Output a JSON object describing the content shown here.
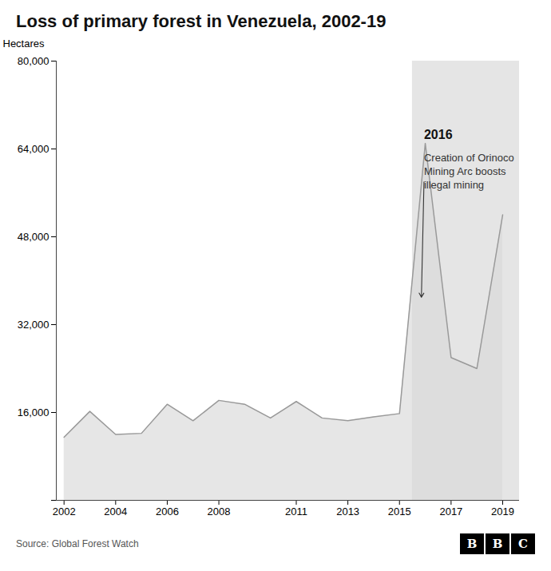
{
  "chart_data": {
    "type": "area",
    "title": "Loss of primary forest in Venezuela, 2002-19",
    "x": [
      2002,
      2003,
      2004,
      2005,
      2006,
      2007,
      2008,
      2009,
      2010,
      2011,
      2012,
      2013,
      2014,
      2015,
      2016,
      2017,
      2018,
      2019
    ],
    "values": [
      11500,
      16200,
      12000,
      12200,
      17500,
      14500,
      18200,
      17500,
      15000,
      18000,
      15000,
      14500,
      15200,
      15800,
      65000,
      26000,
      24000,
      52000
    ],
    "color": "#999999",
    "fill_color": "#d8d8d8",
    "highlight": {
      "x": [
        2015.5,
        2019.65
      ],
      "color": "#d0d0d0"
    },
    "ylabel": "Hectares",
    "xlim": [
      2001.7,
      2019.65
    ],
    "xticks": [
      2002,
      2004,
      2006,
      2008,
      2011,
      2013,
      2015,
      2017,
      2019
    ],
    "ylim": [
      0,
      80000
    ],
    "yticks": [
      {
        "value": 0,
        "label": null
      },
      {
        "value": 16000,
        "label": "16,000"
      },
      {
        "value": 32000,
        "label": "32,000"
      },
      {
        "value": 48000,
        "label": "48,000"
      },
      {
        "value": 64000,
        "label": "64,000"
      },
      {
        "value": 80000,
        "label": "80,000"
      }
    ],
    "annotations": [
      {
        "text": "2016",
        "x": 2015.95,
        "y": 68000
      },
      {
        "text": "Creation of Orinoco\nMining Arc boosts\nillegal mining",
        "x": 2015.95,
        "y": 63500
      }
    ],
    "arrow": {
      "x1": 2015.95,
      "y1": 58000,
      "x2": 2015.85,
      "y2": 37000
    },
    "source": "Source: Global Forest Watch",
    "logo": "BBC",
    "grid": false
  }
}
